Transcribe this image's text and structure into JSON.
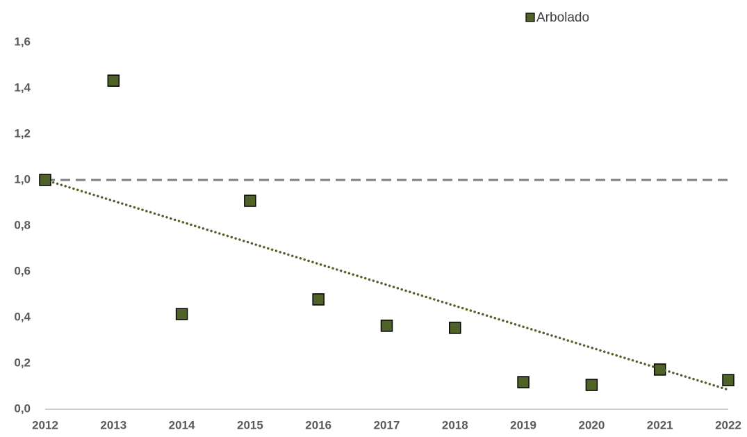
{
  "chart_data": {
    "type": "scatter",
    "x": [
      2012,
      2013,
      2014,
      2015,
      2016,
      2017,
      2018,
      2019,
      2020,
      2021,
      2022
    ],
    "series": [
      {
        "name": "Arbolado",
        "color": "#4f6228",
        "values": [
          1.0,
          1.433,
          0.415,
          0.909,
          0.479,
          0.364,
          0.355,
          0.118,
          0.106,
          0.173,
          0.127
        ]
      }
    ],
    "xlim": [
      2012,
      2022
    ],
    "xticks": [
      2012,
      2013,
      2014,
      2015,
      2016,
      2017,
      2018,
      2019,
      2020,
      2021,
      2022
    ],
    "ylim": [
      0,
      1.6
    ],
    "yticks": [
      {
        "value": 0,
        "label": "0,0"
      },
      {
        "value": 0.2,
        "label": "0,2"
      },
      {
        "value": 0.4,
        "label": "0,4"
      },
      {
        "value": 0.6,
        "label": "0,6"
      },
      {
        "value": 0.8,
        "label": "0,8"
      },
      {
        "value": 1.0,
        "label": "1,0"
      },
      {
        "value": 1.2,
        "label": "1,2"
      },
      {
        "value": 1.4,
        "label": "1,4"
      },
      {
        "value": 1.6,
        "label": "1,6"
      }
    ],
    "reference_line": {
      "value": 1.0,
      "color": "#808080"
    },
    "trendline": {
      "x": [
        2012,
        2022
      ],
      "values": [
        1.0,
        0.085
      ],
      "color": "#4f6228"
    },
    "legend": "top"
  }
}
